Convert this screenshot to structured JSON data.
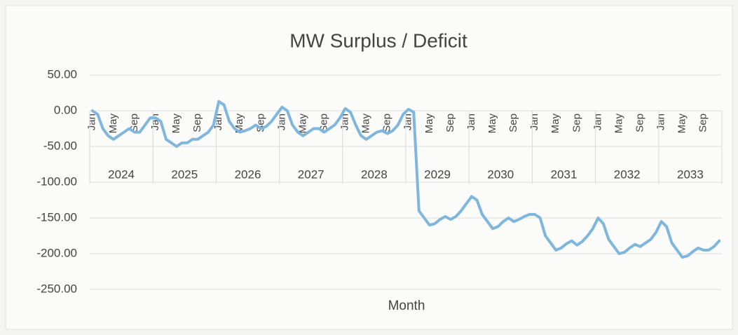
{
  "chart_data": {
    "type": "line",
    "title": "MW Surplus / Deficit",
    "xlabel": "Month",
    "categories": [
      "Jan",
      null,
      null,
      null,
      "May",
      null,
      null,
      null,
      "Sep",
      null,
      null,
      null,
      "Jan",
      null,
      null,
      null,
      "May",
      null,
      null,
      null,
      "Sep",
      null,
      null,
      null,
      "Jan",
      null,
      null,
      null,
      "May",
      null,
      null,
      null,
      "Sep",
      null,
      null,
      null,
      "Jan",
      null,
      null,
      null,
      "May",
      null,
      null,
      null,
      "Sep",
      null,
      null,
      null,
      "Jan",
      null,
      null,
      null,
      "May",
      null,
      null,
      null,
      "Sep",
      null,
      null,
      null,
      "Jan",
      null,
      null,
      null,
      "May",
      null,
      null,
      null,
      "Sep",
      null,
      null,
      null,
      "Jan",
      null,
      null,
      null,
      "May",
      null,
      null,
      null,
      "Sep",
      null,
      null,
      null,
      "Jan",
      null,
      null,
      null,
      "May",
      null,
      null,
      null,
      "Sep",
      null,
      null,
      null,
      "Jan",
      null,
      null,
      null,
      "May",
      null,
      null,
      null,
      "Sep",
      null,
      null,
      null,
      "Jan",
      null,
      null,
      null,
      "May",
      null,
      null,
      null,
      "Sep",
      null,
      null,
      null
    ],
    "category_groups": [
      "2024",
      "2025",
      "2026",
      "2027",
      "2028",
      "2029",
      "2030",
      "2031",
      "2032",
      "2033"
    ],
    "values": [
      0,
      -5,
      -25,
      -35,
      -40,
      -35,
      -30,
      -25,
      -30,
      -30,
      -20,
      -10,
      -10,
      -15,
      -40,
      -45,
      -50,
      -45,
      -45,
      -40,
      -40,
      -35,
      -30,
      -20,
      13,
      8,
      -15,
      -25,
      -30,
      -28,
      -25,
      -20,
      -25,
      -22,
      -15,
      -5,
      5,
      0,
      -20,
      -30,
      -35,
      -30,
      -25,
      -25,
      -30,
      -25,
      -20,
      -10,
      3,
      -2,
      -20,
      -35,
      -40,
      -35,
      -30,
      -28,
      -32,
      -28,
      -20,
      -5,
      2,
      -2,
      -140,
      -150,
      -160,
      -158,
      -152,
      -148,
      -152,
      -148,
      -140,
      -130,
      -120,
      -125,
      -145,
      -155,
      -165,
      -162,
      -155,
      -150,
      -155,
      -152,
      -148,
      -145,
      -145,
      -150,
      -175,
      -185,
      -195,
      -192,
      -186,
      -182,
      -188,
      -183,
      -175,
      -165,
      -150,
      -158,
      -180,
      -190,
      -200,
      -198,
      -192,
      -187,
      -190,
      -185,
      -180,
      -170,
      -155,
      -162,
      -185,
      -195,
      -205,
      -203,
      -197,
      -192,
      -195,
      -195,
      -190,
      -182
    ],
    "color": "#7fb6de",
    "ylim": [
      -250,
      50
    ],
    "yticks": [
      {
        "value": -250,
        "label": "-250.00"
      },
      {
        "value": -200,
        "label": "-200.00"
      },
      {
        "value": -150,
        "label": "-150.00"
      },
      {
        "value": -100,
        "label": "-100.00"
      },
      {
        "value": -50,
        "label": "-50.00"
      },
      {
        "value": 0,
        "label": "0.00"
      },
      {
        "value": 50,
        "label": "50.00"
      }
    ],
    "grid": true
  }
}
